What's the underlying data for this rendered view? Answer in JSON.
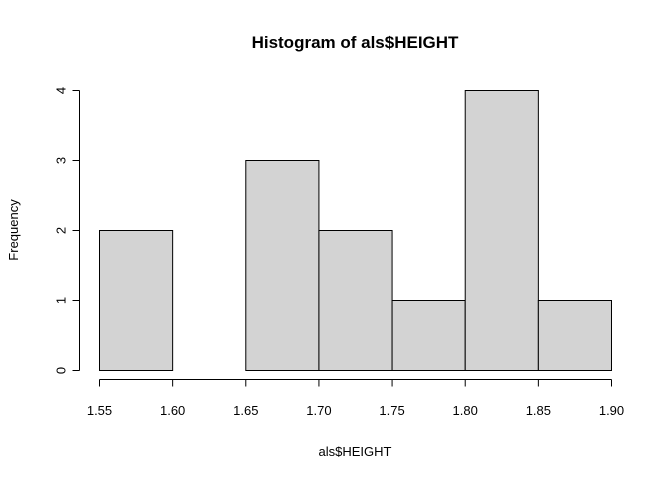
{
  "chart_data": {
    "type": "bar",
    "title": "Histogram of als$HEIGHT",
    "xlabel": "als$HEIGHT",
    "ylabel": "Frequency",
    "bin_edges": [
      1.55,
      1.6,
      1.65,
      1.7,
      1.75,
      1.8,
      1.85,
      1.9
    ],
    "values": [
      2,
      0,
      3,
      2,
      1,
      4,
      1
    ],
    "xlim": [
      1.55,
      1.9
    ],
    "ylim": [
      0,
      4
    ],
    "x_ticks": [
      "1.55",
      "1.60",
      "1.65",
      "1.70",
      "1.75",
      "1.80",
      "1.85",
      "1.90"
    ],
    "y_ticks": [
      "0",
      "1",
      "2",
      "3",
      "4"
    ],
    "bar_fill": "#d3d3d3",
    "bar_stroke": "#000000",
    "grid": false,
    "legend": "none"
  }
}
